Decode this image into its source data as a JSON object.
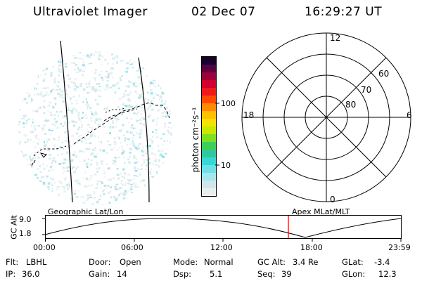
{
  "header": {
    "instrument": "Ultraviolet Imager",
    "date": "02 Dec 07",
    "time": "16:29:27 UT"
  },
  "colorbar": {
    "unit_label": "photon cm⁻²s⁻¹",
    "ticks": [
      "100",
      "10"
    ],
    "colors": [
      "#e8eef0",
      "#cfe6ea",
      "#a8e6ee",
      "#6fe0e6",
      "#38d6d6",
      "#2ec8a0",
      "#3cd05a",
      "#7ee020",
      "#c8e800",
      "#f0e400",
      "#ffc000",
      "#ff8c00",
      "#ff4a00",
      "#f01818",
      "#d00030",
      "#a0003a",
      "#5a0040",
      "#1a0030"
    ]
  },
  "polar": {
    "mlt_labels": {
      "top": "12",
      "bottom": "0",
      "left": "18",
      "right": "6"
    },
    "lat_labels": [
      "60",
      "70",
      "80"
    ]
  },
  "timeline": {
    "left_title": "Geographic Lat/Lon",
    "right_title": "Apex MLat/MLT",
    "axis_title": "GC Alt",
    "y_ticks": [
      "9.0",
      "1.8"
    ],
    "x_ticks": [
      "00:00",
      "06:00",
      "12:00",
      "18:00",
      "23:59"
    ],
    "current_time_marker_color": "#d00000"
  },
  "info": {
    "filter_label": "Flt:",
    "filter_value": "LBHL",
    "ip_label": "IP:",
    "ip_value": "36.0",
    "door_label": "Door:",
    "door_value": "Open",
    "gain_label": "Gain:",
    "gain_value": "14",
    "mode_label": "Mode:",
    "mode_value": "Normal",
    "dsp_label": "Dsp:",
    "dsp_value": "5.1",
    "gcalt_label": "GC Alt:",
    "gcalt_value": "3.4 Re",
    "seq_label": "Seq:",
    "seq_value": "39",
    "glat_label": "GLat:",
    "glat_value": "-3.4",
    "glon_label": "GLon:",
    "glon_value": "12.3"
  }
}
